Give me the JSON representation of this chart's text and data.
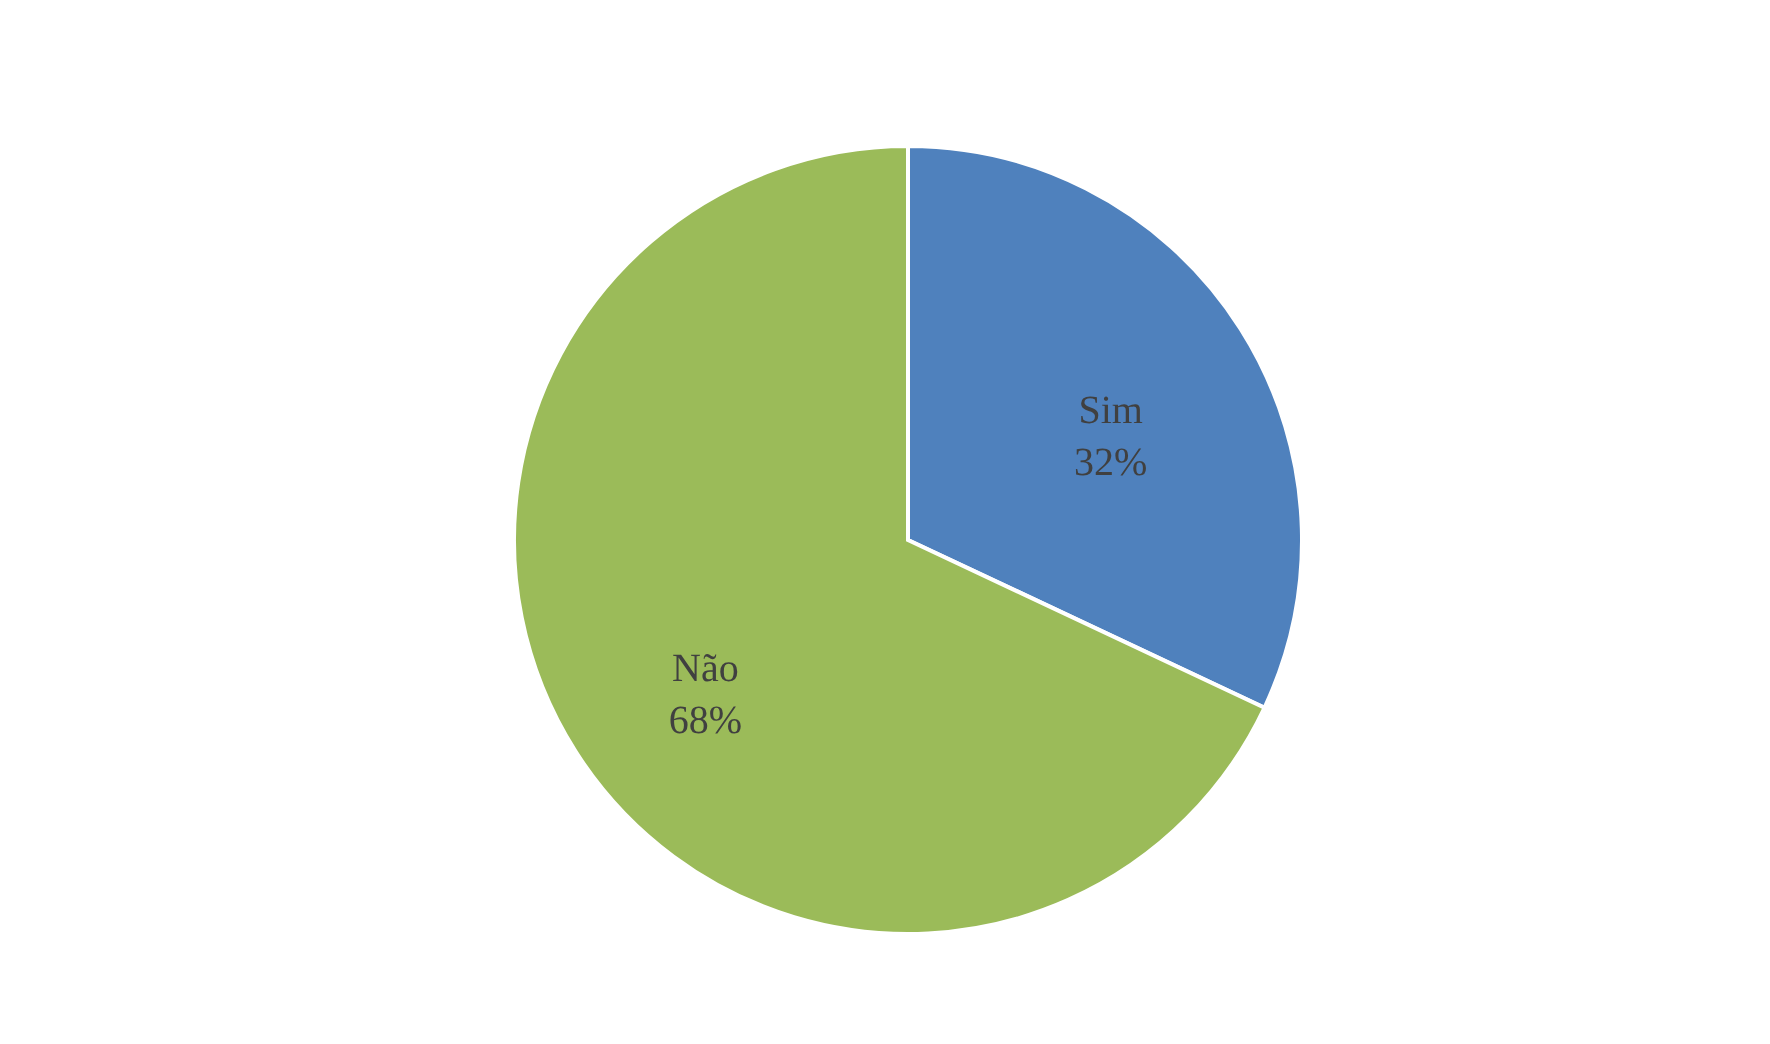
{
  "chart_data": {
    "type": "pie",
    "categories": [
      "Sim",
      "Não"
    ],
    "values": [
      32,
      68
    ],
    "colors": [
      "#4f81bd",
      "#9bbb59"
    ],
    "value_labels": [
      "32%",
      "68%"
    ]
  }
}
